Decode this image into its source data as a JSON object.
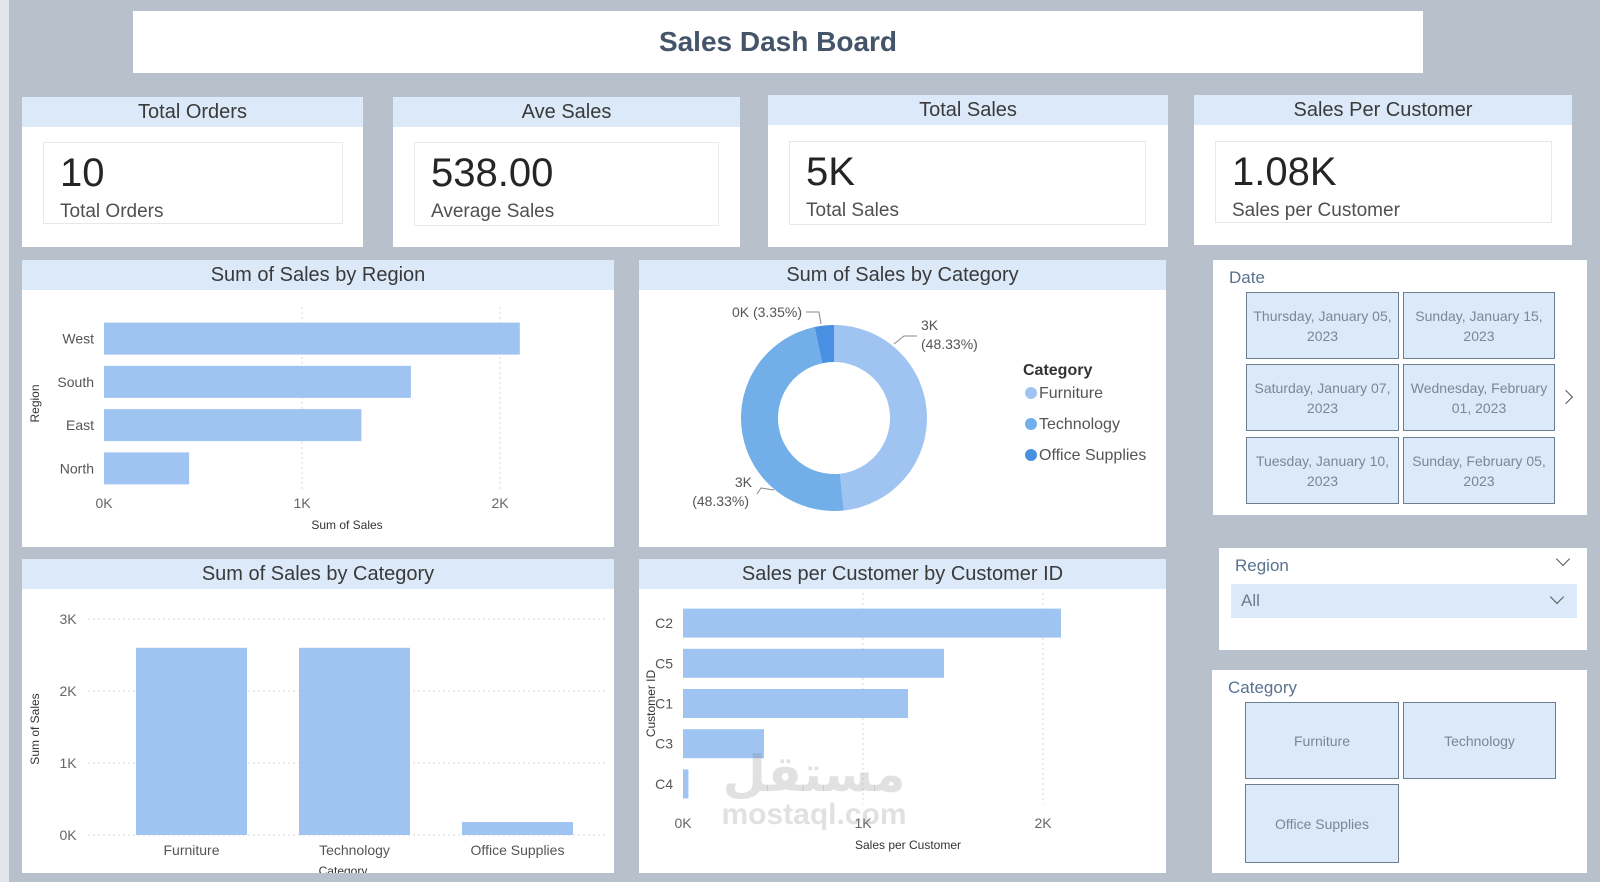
{
  "dashboard": {
    "title": "Sales Dash Board"
  },
  "kpis": [
    {
      "header": "Total Orders",
      "value": "10",
      "label": "Total Orders"
    },
    {
      "header": "Ave Sales",
      "value": "538.00",
      "label": "Average Sales"
    },
    {
      "header": "Total Sales",
      "value": "5K",
      "label": "Total Sales"
    },
    {
      "header": "Sales Per Customer",
      "value": "1.08K",
      "label": "Sales per Customer"
    }
  ],
  "slicers": {
    "date": {
      "title": "Date",
      "options": [
        "Thursday, January 05, 2023",
        "Sunday, January 15, 2023",
        "Saturday, January 07, 2023",
        "Wednesday, February 01, 2023",
        "Tuesday, January 10, 2023",
        "Sunday, February 05, 2023"
      ],
      "next_icon": "chevron-right-icon"
    },
    "region": {
      "title": "Region",
      "selected": "All"
    },
    "category": {
      "title": "Category",
      "options": [
        "Furniture",
        "Technology",
        "Office Supplies"
      ]
    }
  },
  "watermark": {
    "arabic": "مستقل",
    "latin": "mostaql.com"
  },
  "colors": {
    "bar": "#a0c4f1",
    "furniture": "#a0c4f1",
    "technology": "#72afe8",
    "office": "#4a90e2",
    "header": "#dbe9f8"
  },
  "chart_data": [
    {
      "id": "region",
      "type": "bar",
      "orientation": "horizontal",
      "title": "Sum of Sales by Region",
      "xlabel": "Sum of Sales",
      "ylabel": "Region",
      "categories": [
        "West",
        "South",
        "East",
        "North"
      ],
      "values": [
        2100,
        1550,
        1300,
        430
      ],
      "xlim": [
        0,
        2000
      ],
      "xticks": [
        "0K",
        "1K",
        "2K"
      ],
      "grid": true
    },
    {
      "id": "category-donut",
      "type": "pie",
      "title": "Sum of Sales by Category",
      "legend_title": "Category",
      "legend_position": "right",
      "categories": [
        "Furniture",
        "Technology",
        "Office Supplies"
      ],
      "values": [
        48.33,
        48.33,
        3.35
      ],
      "data_labels": [
        {
          "value": "3K",
          "pct": "(48.33%)"
        },
        {
          "value": "3K",
          "pct": "(48.33%)"
        },
        {
          "value": "0K (3.35%)",
          "pct": ""
        }
      ]
    },
    {
      "id": "category-columns",
      "type": "bar",
      "orientation": "vertical",
      "title": "Sum of Sales by Category",
      "xlabel": "Category",
      "ylabel": "Sum of Sales",
      "categories": [
        "Furniture",
        "Technology",
        "Office Supplies"
      ],
      "values": [
        2600,
        2600,
        180
      ],
      "ylim": [
        0,
        3000
      ],
      "yticks": [
        "0K",
        "1K",
        "2K",
        "3K"
      ],
      "grid": true
    },
    {
      "id": "customer",
      "type": "bar",
      "orientation": "horizontal",
      "title": "Sales per Customer by Customer ID",
      "xlabel": "Sales per Customer",
      "ylabel": "Customer ID",
      "categories": [
        "C2",
        "C5",
        "C1",
        "C3",
        "C4"
      ],
      "values": [
        2100,
        1450,
        1250,
        450,
        30
      ],
      "xlim": [
        0,
        2000
      ],
      "xticks": [
        "0K",
        "1K",
        "2K"
      ],
      "grid": true
    }
  ]
}
